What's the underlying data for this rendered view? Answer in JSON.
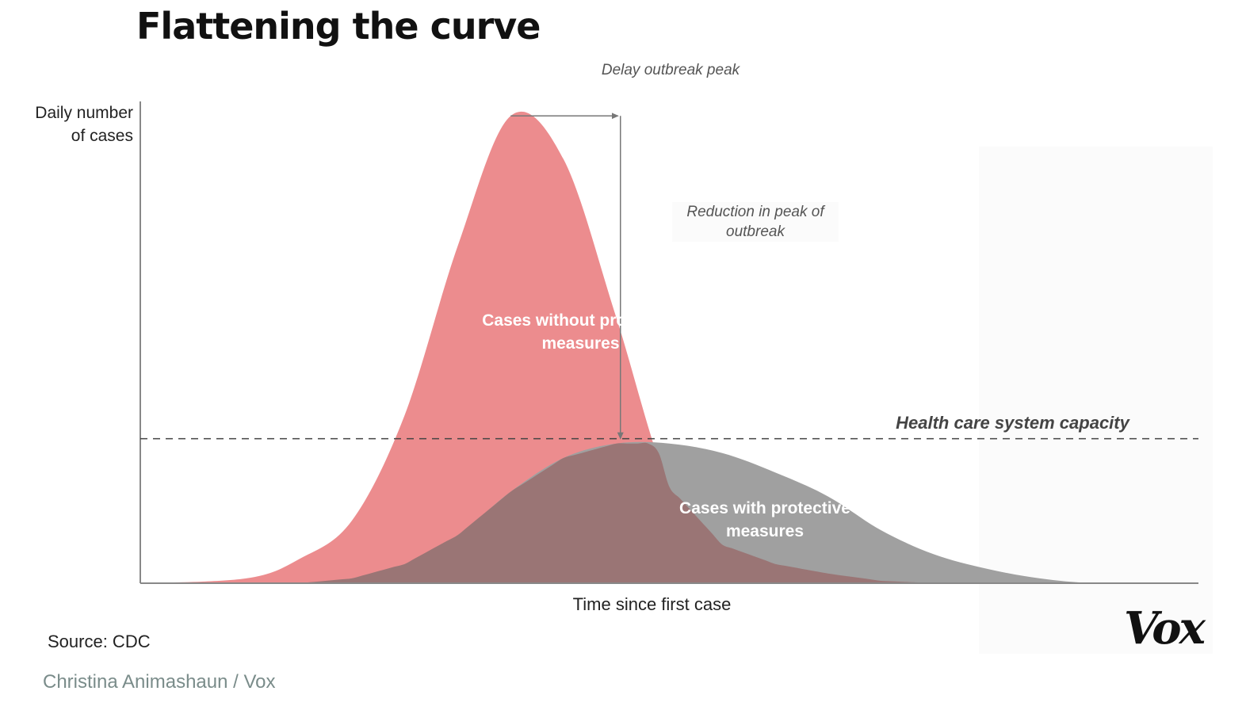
{
  "title": "Flattening the curve",
  "source": "Source: CDC",
  "credit": "Christina Animashaun / Vox",
  "logo_text": "Vox",
  "colors": {
    "without": "#ec8c8e",
    "with": "#a0a0a0",
    "overlap": "#9a7575",
    "axis": "#888888",
    "capacity_line": "#444444",
    "background_panel": "#fbfbfb"
  },
  "chart_data": {
    "type": "area",
    "title": "Flattening the curve",
    "xlabel": "Time since first case",
    "ylabel": "Daily number of cases",
    "xlim": [
      0,
      100
    ],
    "ylim": [
      0,
      100
    ],
    "grid": false,
    "series": [
      {
        "name": "Cases without protective measures",
        "label": "Cases without protective measures",
        "x": [
          0,
          10,
          15,
          20,
          25,
          30,
          35,
          40,
          45,
          50,
          55,
          60,
          65,
          70,
          75,
          80,
          85,
          90,
          95,
          100
        ],
        "values": [
          0,
          1,
          5,
          13,
          35,
          70,
          97,
          88,
          55,
          20,
          8,
          4,
          2,
          0.5,
          0,
          0,
          0,
          0,
          0,
          0
        ]
      },
      {
        "name": "Cases with protective measures",
        "label": "Cases with protective measures",
        "x": [
          0,
          15,
          20,
          25,
          30,
          35,
          40,
          45,
          50,
          55,
          60,
          65,
          70,
          75,
          80,
          85,
          90,
          95,
          100
        ],
        "values": [
          0,
          0,
          1,
          4,
          10,
          19,
          26,
          29,
          29,
          27,
          23,
          18,
          11,
          6,
          3,
          1,
          0,
          0,
          0
        ]
      }
    ],
    "reference_line": {
      "label": "Health care system capacity",
      "value": 30
    },
    "annotations": [
      {
        "text": "Delay outbreak peak"
      },
      {
        "text": "Reduction in peak of outbreak"
      }
    ]
  }
}
